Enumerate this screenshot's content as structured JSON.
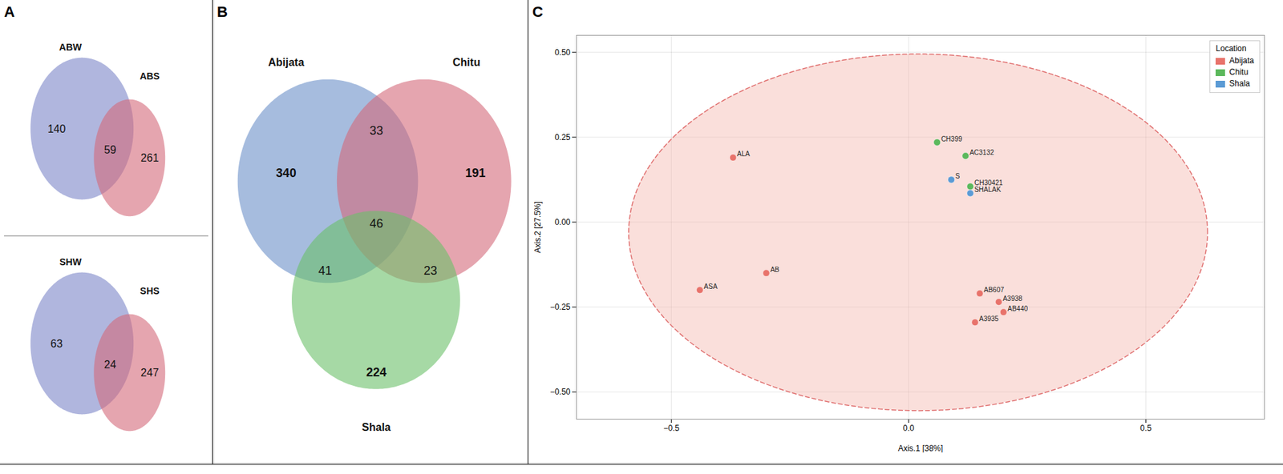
{
  "chart_data": [
    {
      "type": "venn",
      "title": "A",
      "diagrams": [
        {
          "sets": [
            {
              "name": "ABW",
              "color": "#7b85c8"
            },
            {
              "name": "ABS",
              "color": "#d4697a"
            }
          ],
          "regions": [
            {
              "sets": [
                "ABW"
              ],
              "value": 140
            },
            {
              "sets": [
                "ABW",
                "ABS"
              ],
              "value": 59
            },
            {
              "sets": [
                "ABS"
              ],
              "value": 261
            }
          ]
        },
        {
          "sets": [
            {
              "name": "SHW",
              "color": "#7b85c8"
            },
            {
              "name": "SHS",
              "color": "#d4697a"
            }
          ],
          "regions": [
            {
              "sets": [
                "SHW"
              ],
              "value": 63
            },
            {
              "sets": [
                "SHW",
                "SHS"
              ],
              "value": 24
            },
            {
              "sets": [
                "SHS"
              ],
              "value": 247
            }
          ]
        }
      ]
    },
    {
      "type": "venn",
      "title": "B",
      "diagrams": [
        {
          "sets": [
            {
              "name": "Abijata",
              "color": "#6a8fc8"
            },
            {
              "name": "Chitu",
              "color": "#d4697a"
            },
            {
              "name": "Shala",
              "color": "#6abf69"
            }
          ],
          "regions": [
            {
              "sets": [
                "Abijata"
              ],
              "value": 340
            },
            {
              "sets": [
                "Chitu"
              ],
              "value": 191
            },
            {
              "sets": [
                "Shala"
              ],
              "value": 224
            },
            {
              "sets": [
                "Abijata",
                "Chitu"
              ],
              "value": 33
            },
            {
              "sets": [
                "Abijata",
                "Chitu",
                "Shala"
              ],
              "value": 46
            },
            {
              "sets": [
                "Abijata",
                "Shala"
              ],
              "value": 41
            },
            {
              "sets": [
                "Chitu",
                "Shala"
              ],
              "value": 23
            }
          ]
        }
      ]
    },
    {
      "type": "scatter",
      "title": "C",
      "xlabel": "Axis.1 [38%]",
      "ylabel": "Axis.2 [27.5%]",
      "xlim": [
        -0.7,
        0.75
      ],
      "ylim": [
        -0.58,
        0.55
      ],
      "xticks": [
        {
          "value": -0.5,
          "label": "−0.5"
        },
        {
          "value": 0.0,
          "label": "0.0"
        },
        {
          "value": 0.5,
          "label": "0.5"
        }
      ],
      "yticks": [
        {
          "value": -0.5,
          "label": "−0.50"
        },
        {
          "value": -0.25,
          "label": "−0.25"
        },
        {
          "value": 0.0,
          "label": "0.00"
        },
        {
          "value": 0.25,
          "label": "0.25"
        },
        {
          "value": 0.5,
          "label": "0.50"
        }
      ],
      "grid": true,
      "legend": "upper right",
      "legend_title": "Location",
      "ellipse": {
        "center_x": 0.02,
        "center_y": -0.03,
        "width": 1.22,
        "height": 1.05,
        "color": "#f5b8b0",
        "edge_color": "#e07070",
        "line_style": "dashed"
      },
      "series": [
        {
          "name": "Abijata",
          "color": "#e8736b",
          "x": [
            -0.37,
            -0.3,
            -0.44,
            0.15,
            0.19,
            0.2,
            0.14
          ],
          "y": [
            0.19,
            -0.15,
            -0.2,
            -0.21,
            -0.235,
            -0.265,
            -0.295
          ],
          "labels": [
            "ALA",
            "AB",
            "ASA",
            "AB607",
            "A3938",
            "AB440",
            "A3935"
          ]
        },
        {
          "name": "Chitu",
          "color": "#5cb85c",
          "x": [
            0.06,
            0.12,
            0.13
          ],
          "y": [
            0.235,
            0.195,
            0.105
          ],
          "labels": [
            "CH399",
            "AC3132",
            "CH30421"
          ]
        },
        {
          "name": "Shala",
          "color": "#5b9bd5",
          "x": [
            0.09,
            0.13
          ],
          "y": [
            0.125,
            0.085
          ],
          "labels": [
            "S",
            "SHALAK"
          ]
        }
      ]
    }
  ]
}
